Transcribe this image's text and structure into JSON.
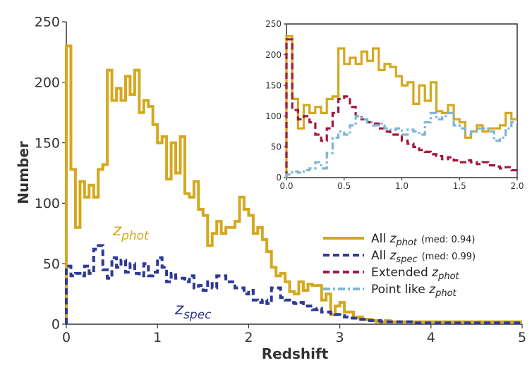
{
  "colors": {
    "phot": "#d4a81f",
    "spec": "#2e3a94",
    "extended": "#a6163a",
    "point": "#7db6d6",
    "axis": "#333333"
  },
  "chart_data": [
    {
      "type": "line",
      "drawstyle": "steps",
      "xlabel": "Redshift",
      "ylabel": "Number",
      "xlim": [
        0,
        5
      ],
      "ylim": [
        0,
        250
      ],
      "xticks": [
        0,
        1,
        2,
        3,
        4,
        5
      ],
      "yticks": [
        0,
        50,
        100,
        150,
        200,
        250
      ],
      "bin_width": 0.05,
      "annotations": [
        {
          "text": "z",
          "sub": "phot",
          "color_key": "phot"
        },
        {
          "text": "z",
          "sub": "spec",
          "color_key": "spec"
        }
      ],
      "legend": {
        "position": "lower-right",
        "entries": [
          {
            "series": "All z_phot",
            "prefix": "All ",
            "z_sub": "phot",
            "suffix": "(med: 0.94)",
            "color_key": "phot",
            "style": "solid"
          },
          {
            "series": "All z_spec",
            "prefix": "All ",
            "z_sub": "spec",
            "suffix": "(med: 0.99)",
            "color_key": "spec",
            "style": "dashed"
          },
          {
            "series": "Extended z_phot",
            "prefix": "Extended ",
            "z_sub": "phot",
            "suffix": "",
            "color_key": "extended",
            "style": "dashed"
          },
          {
            "series": "Point like z_phot",
            "prefix": "Point like ",
            "z_sub": "phot",
            "suffix": "",
            "color_key": "point",
            "style": "dashdot"
          }
        ]
      },
      "series": [
        {
          "name": "All z_phot",
          "color_key": "phot",
          "style": "solid",
          "x_start": 0,
          "values": [
            230,
            128,
            80,
            118,
            105,
            115,
            105,
            128,
            132,
            210,
            185,
            195,
            185,
            205,
            190,
            210,
            175,
            185,
            180,
            165,
            150,
            155,
            120,
            150,
            125,
            155,
            108,
            105,
            118,
            95,
            90,
            65,
            75,
            85,
            75,
            80,
            80,
            85,
            105,
            95,
            90,
            75,
            80,
            70,
            60,
            47,
            40,
            42,
            35,
            27,
            25,
            35,
            28,
            33,
            32,
            32,
            20,
            25,
            8,
            15,
            18,
            10,
            10,
            5,
            6,
            4,
            4,
            3,
            2,
            2,
            3,
            2,
            2,
            2,
            2,
            2,
            2,
            2,
            2,
            2,
            2,
            2,
            2,
            2,
            2,
            2,
            2,
            2,
            2,
            2,
            2,
            2,
            2,
            2,
            2,
            2,
            2,
            2,
            2,
            2
          ]
        },
        {
          "name": "All z_spec",
          "color_key": "spec",
          "style": "dashed",
          "x_start": 0,
          "values": [
            48,
            40,
            42,
            40,
            48,
            42,
            62,
            65,
            45,
            38,
            55,
            47,
            53,
            43,
            50,
            42,
            40,
            50,
            40,
            43,
            55,
            47,
            35,
            42,
            38,
            38,
            35,
            40,
            30,
            32,
            28,
            35,
            30,
            40,
            40,
            35,
            35,
            30,
            30,
            25,
            28,
            20,
            18,
            20,
            17,
            30,
            30,
            22,
            20,
            18,
            17,
            18,
            15,
            15,
            12,
            13,
            10,
            10,
            9,
            8,
            7,
            6,
            5,
            5,
            4,
            4,
            3,
            3,
            3,
            2,
            2,
            2,
            2,
            2,
            2,
            2,
            1,
            1,
            1,
            1,
            1,
            1,
            1,
            1,
            1,
            1,
            1,
            1,
            1,
            1,
            1,
            1,
            1,
            1,
            1,
            1,
            1,
            1,
            1,
            1
          ]
        }
      ]
    },
    {
      "type": "line",
      "drawstyle": "steps",
      "role": "inset",
      "xlim": [
        0,
        2
      ],
      "ylim": [
        0,
        250
      ],
      "xticks": [
        0.0,
        0.5,
        1.0,
        1.5,
        2.0
      ],
      "xtick_labels": [
        "0.0",
        "0.5",
        "1.0",
        "1.5",
        "2.0"
      ],
      "yticks": [
        0,
        50,
        100,
        150,
        200,
        250
      ],
      "bin_width": 0.05,
      "series": [
        {
          "name": "All z_phot",
          "color_key": "phot",
          "style": "solid",
          "x_start": 0,
          "values": [
            230,
            128,
            80,
            118,
            105,
            115,
            105,
            128,
            132,
            210,
            185,
            195,
            185,
            205,
            190,
            210,
            175,
            185,
            180,
            165,
            150,
            155,
            120,
            150,
            125,
            155,
            108,
            105,
            118,
            95,
            90,
            65,
            75,
            85,
            75,
            80,
            80,
            85,
            105,
            95
          ]
        },
        {
          "name": "Extended z_phot",
          "color_key": "extended",
          "style": "dashed",
          "x_start": 0,
          "values": [
            225,
            110,
            95,
            100,
            90,
            70,
            60,
            80,
            105,
            128,
            132,
            115,
            100,
            95,
            90,
            88,
            80,
            75,
            70,
            70,
            60,
            55,
            50,
            45,
            42,
            38,
            35,
            30,
            33,
            28,
            25,
            28,
            25,
            22,
            25,
            20,
            18,
            15,
            17,
            12
          ]
        },
        {
          "name": "Point like z_phot",
          "color_key": "point",
          "style": "dashdot",
          "x_start": 0,
          "values": [
            5,
            10,
            8,
            12,
            15,
            25,
            15,
            40,
            65,
            75,
            70,
            85,
            100,
            95,
            90,
            85,
            88,
            80,
            78,
            80,
            70,
            78,
            75,
            70,
            90,
            105,
            95,
            100,
            105,
            85,
            80,
            70,
            75,
            80,
            80,
            75,
            60,
            65,
            80,
            90
          ]
        }
      ]
    }
  ]
}
